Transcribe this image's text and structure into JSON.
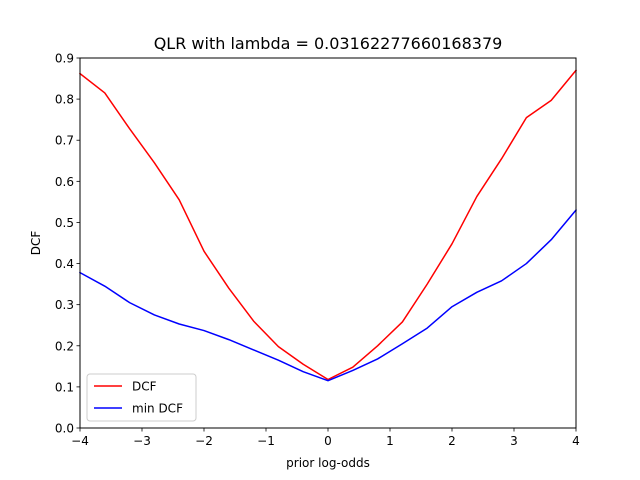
{
  "chart_data": {
    "type": "line",
    "title": "QLR with lambda = 0.03162277660168379",
    "xlabel": "prior log-odds",
    "ylabel": "DCF",
    "xlim": [
      -4,
      4
    ],
    "ylim": [
      0,
      0.9
    ],
    "xticks": [
      -4,
      -3,
      -2,
      -1,
      0,
      1,
      2,
      3,
      4
    ],
    "yticks": [
      0.0,
      0.1,
      0.2,
      0.3,
      0.4,
      0.5,
      0.6,
      0.7,
      0.8,
      0.9
    ],
    "xtick_labels": [
      "−4",
      "−3",
      "−2",
      "−1",
      "0",
      "1",
      "2",
      "3",
      "4"
    ],
    "ytick_labels": [
      "0.0",
      "0.1",
      "0.2",
      "0.3",
      "0.4",
      "0.5",
      "0.6",
      "0.7",
      "0.8",
      "0.9"
    ],
    "grid": false,
    "legend_position": "lower-left",
    "x": [
      -4.0,
      -3.6,
      -3.2,
      -2.8,
      -2.4,
      -2.0,
      -1.6,
      -1.2,
      -0.8,
      -0.4,
      0.0,
      0.4,
      0.8,
      1.2,
      1.6,
      2.0,
      2.4,
      2.8,
      3.2,
      3.6,
      4.0
    ],
    "series": [
      {
        "name": "DCF",
        "color": "#ff0000",
        "values": [
          0.862,
          0.815,
          0.728,
          0.645,
          0.555,
          0.43,
          0.34,
          0.26,
          0.198,
          0.155,
          0.118,
          0.148,
          0.2,
          0.258,
          0.35,
          0.448,
          0.563,
          0.655,
          0.755,
          0.797,
          0.87
        ]
      },
      {
        "name": "min DCF",
        "color": "#0000ff",
        "values": [
          0.378,
          0.345,
          0.305,
          0.275,
          0.253,
          0.237,
          0.215,
          0.19,
          0.165,
          0.137,
          0.115,
          0.14,
          0.168,
          0.205,
          0.243,
          0.295,
          0.33,
          0.358,
          0.4,
          0.458,
          0.53
        ]
      }
    ]
  }
}
